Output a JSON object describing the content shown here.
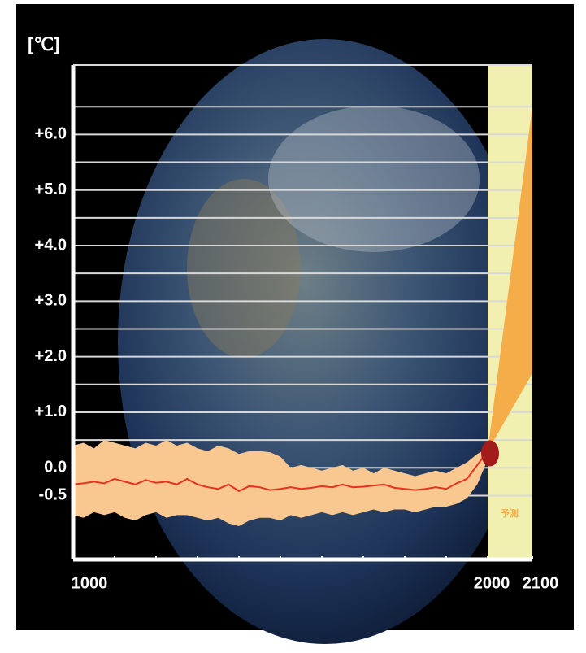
{
  "chart_data": {
    "type": "area-range",
    "y_unit": "[℃]",
    "x": [
      1000,
      1025,
      1050,
      1075,
      1100,
      1125,
      1150,
      1175,
      1200,
      1225,
      1250,
      1275,
      1300,
      1325,
      1350,
      1375,
      1400,
      1425,
      1450,
      1475,
      1500,
      1525,
      1550,
      1575,
      1600,
      1625,
      1650,
      1675,
      1700,
      1725,
      1750,
      1775,
      1800,
      1825,
      1850,
      1875,
      1900,
      1925,
      1950,
      1975,
      2000
    ],
    "band": {
      "color": "#f9c890",
      "upper": [
        0.4,
        0.45,
        0.35,
        0.5,
        0.45,
        0.4,
        0.35,
        0.45,
        0.4,
        0.5,
        0.4,
        0.45,
        0.35,
        0.3,
        0.4,
        0.35,
        0.25,
        0.3,
        0.3,
        0.28,
        0.2,
        0.0,
        0.05,
        0.0,
        -0.05,
        0.0,
        0.05,
        -0.05,
        0.0,
        -0.1,
        0.0,
        -0.05,
        -0.1,
        -0.15,
        -0.1,
        -0.05,
        -0.1,
        0.0,
        0.1,
        0.25,
        0.35
      ],
      "lower": [
        -0.85,
        -0.9,
        -0.8,
        -0.85,
        -0.8,
        -0.9,
        -0.95,
        -0.85,
        -0.8,
        -0.9,
        -0.85,
        -0.85,
        -0.9,
        -0.95,
        -0.9,
        -1.0,
        -1.05,
        -0.95,
        -0.9,
        -0.9,
        -0.95,
        -0.85,
        -0.9,
        -0.85,
        -0.8,
        -0.85,
        -0.8,
        -0.85,
        -0.8,
        -0.75,
        -0.8,
        -0.75,
        -0.75,
        -0.8,
        -0.75,
        -0.7,
        -0.7,
        -0.65,
        -0.55,
        -0.3,
        0.15
      ]
    },
    "line": {
      "color": "#e8321e",
      "values": [
        -0.3,
        -0.28,
        -0.25,
        -0.28,
        -0.2,
        -0.25,
        -0.3,
        -0.22,
        -0.27,
        -0.25,
        -0.3,
        -0.2,
        -0.3,
        -0.35,
        -0.38,
        -0.3,
        -0.42,
        -0.33,
        -0.35,
        -0.4,
        -0.38,
        -0.35,
        -0.38,
        -0.36,
        -0.33,
        -0.35,
        -0.3,
        -0.35,
        -0.34,
        -0.32,
        -0.3,
        -0.36,
        -0.38,
        -0.4,
        -0.38,
        -0.35,
        -0.38,
        -0.28,
        -0.2,
        0.05,
        0.3
      ]
    },
    "projection": {
      "label": "予測",
      "color": "#f5ad4a",
      "background": "#f2f0b0",
      "x": [
        2000,
        2100
      ],
      "upper": [
        0.3,
        6.5
      ],
      "lower": [
        0.3,
        1.7
      ]
    },
    "marker": {
      "x": 2000,
      "value": 0.26,
      "color": "#a31c1c"
    },
    "xlim": [
      1000,
      2100
    ],
    "xticks": [
      1000,
      2000,
      2100
    ],
    "minor_xticks": [
      1100,
      1200,
      1300,
      1400,
      1500,
      1600,
      1700,
      1800,
      1900
    ],
    "ylim": [
      -1.65,
      7.25
    ],
    "yticks": [
      {
        "value": -0.5,
        "label": "-0.5"
      },
      {
        "value": 0,
        "label": "0.0"
      },
      {
        "value": 1,
        "label": "+1.0"
      },
      {
        "value": 2,
        "label": "+2.0"
      },
      {
        "value": 3,
        "label": "+3.0"
      },
      {
        "value": 4,
        "label": "+4.0"
      },
      {
        "value": 5,
        "label": "+5.0"
      },
      {
        "value": 6,
        "label": "+6.0"
      }
    ],
    "minor_yticks": [
      0.5,
      1.5,
      2.5,
      3.5,
      4.5,
      5.5,
      6.5
    ],
    "grid": true
  }
}
